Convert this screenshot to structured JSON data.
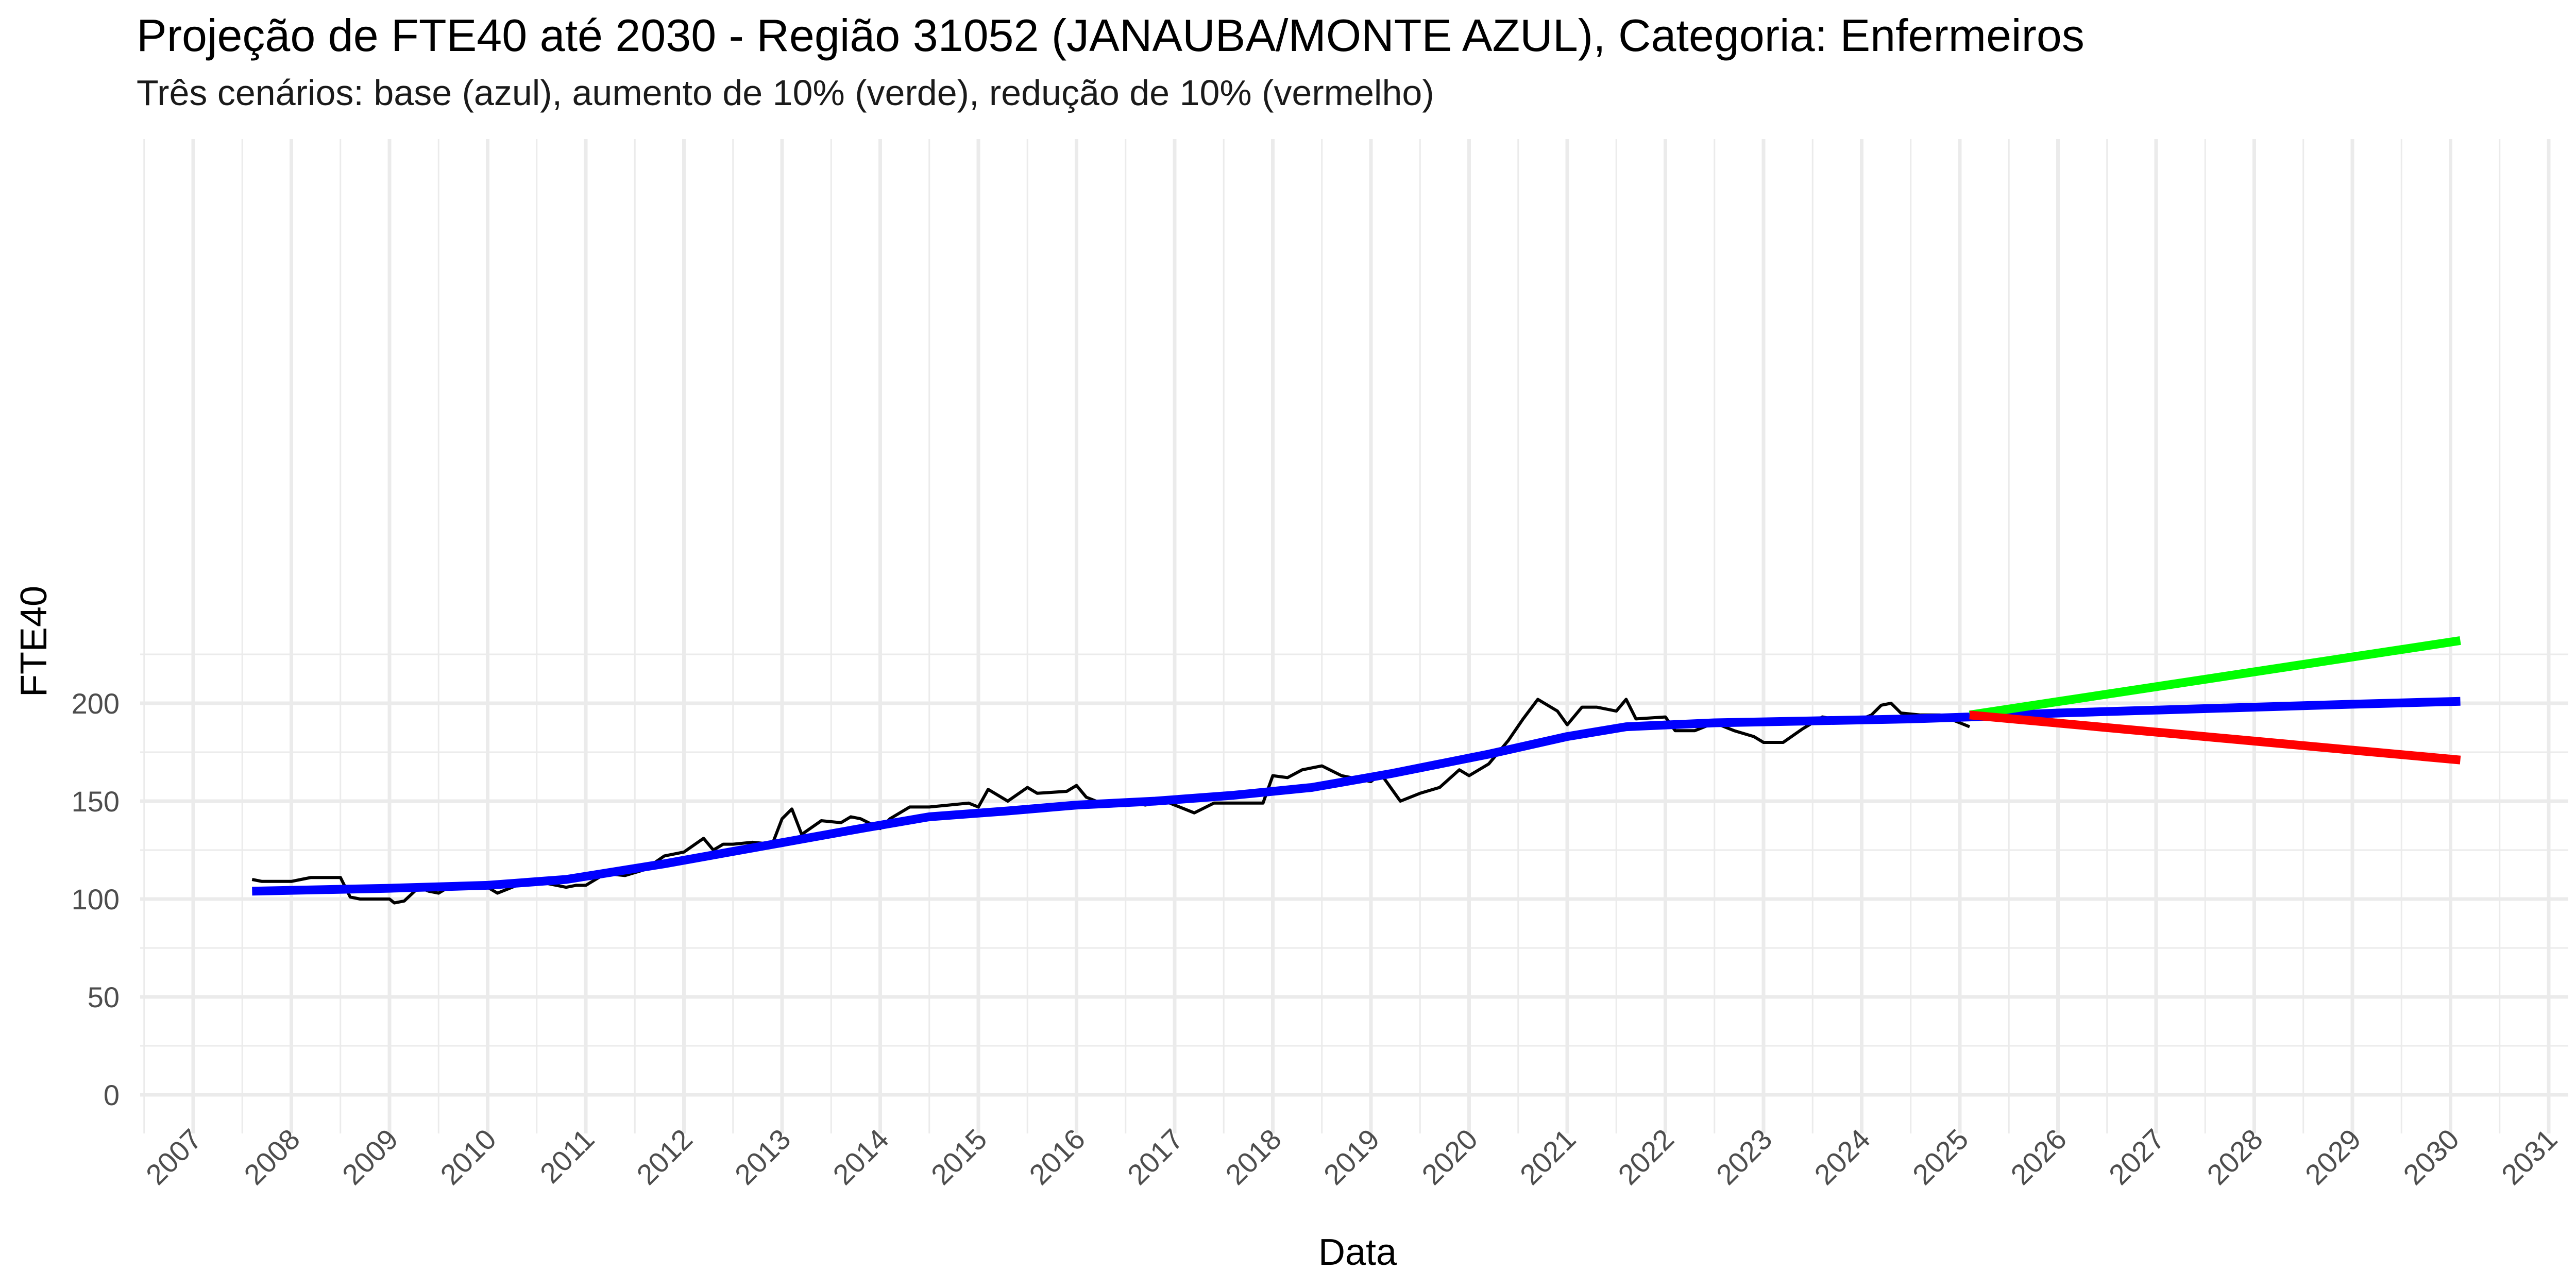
{
  "chart_data": {
    "type": "line",
    "title": "Projeção de FTE40 até 2030 - Região 31052 (JANAUBA/MONTE AZUL), Categoria: Enfermeiros",
    "subtitle": "Três cenários: base (azul), aumento de 10% (verde), redução de 10% (vermelho)",
    "xlabel": "Data",
    "ylabel": "FTE40",
    "xlim": [
      2007,
      2031
    ],
    "ylim": [
      0,
      230
    ],
    "x_ticks": [
      "2007",
      "2008",
      "2009",
      "2010",
      "2011",
      "2012",
      "2013",
      "2014",
      "2015",
      "2016",
      "2017",
      "2018",
      "2019",
      "2020",
      "2021",
      "2022",
      "2023",
      "2024",
      "2025",
      "2026",
      "2027",
      "2028",
      "2029",
      "2030",
      "2031"
    ],
    "y_ticks": [
      0,
      50,
      100,
      150,
      200
    ],
    "grid": true,
    "colors": {
      "observed": "#000000",
      "base": "#0000FF",
      "increase": "#00FF00",
      "decrease": "#FF0000",
      "grid": "#EBEBEB"
    },
    "series": [
      {
        "key": "observed",
        "x": [
          2007.6,
          2007.7,
          2007.8,
          2008.0,
          2008.1,
          2008.2,
          2008.3,
          2008.5,
          2008.6,
          2008.7,
          2008.8,
          2009.0,
          2009.05,
          2009.15,
          2009.3,
          2009.4,
          2009.5,
          2009.6,
          2009.75,
          2009.9,
          2010.0,
          2010.1,
          2010.2,
          2010.3,
          2010.4,
          2010.5,
          2010.6,
          2010.8,
          2010.9,
          2011.0,
          2011.2,
          2011.4,
          2011.6,
          2011.8,
          2012.0,
          2012.2,
          2012.3,
          2012.4,
          2012.5,
          2012.7,
          2012.9,
          2013.0,
          2013.1,
          2013.2,
          2013.4,
          2013.6,
          2013.7,
          2013.8,
          2014.0,
          2014.1,
          2014.3,
          2014.5,
          2014.7,
          2014.9,
          2015.0,
          2015.1,
          2015.3,
          2015.5,
          2015.6,
          2015.9,
          2016.0,
          2016.1,
          2016.3,
          2016.5,
          2016.7,
          2016.9,
          2017.0,
          2017.2,
          2017.4,
          2017.6,
          2017.8,
          2017.9,
          2018.0,
          2018.15,
          2018.3,
          2018.5,
          2018.7,
          2018.9,
          2019.0,
          2019.1,
          2019.3,
          2019.5,
          2019.7,
          2019.9,
          2020.0,
          2020.2,
          2020.4,
          2020.55,
          2020.7,
          2020.9,
          2021.0,
          2021.15,
          2021.3,
          2021.5,
          2021.6,
          2021.7,
          2022.0,
          2022.1,
          2022.3,
          2022.5,
          2022.7,
          2022.9,
          2023.0,
          2023.2,
          2023.4,
          2023.6,
          2023.8,
          2024.0,
          2024.1,
          2024.2,
          2024.3,
          2024.4,
          2024.6,
          2024.8,
          2025.0,
          2025.1
        ],
        "y": [
          110,
          109,
          109,
          109,
          110,
          111,
          111,
          111,
          101,
          100,
          100,
          100,
          98,
          99,
          106,
          104,
          103,
          106,
          107,
          107,
          106,
          103,
          105,
          107,
          109,
          108,
          108,
          106,
          107,
          107,
          113,
          112,
          115,
          122,
          124,
          131,
          125,
          128,
          128,
          129,
          128,
          141,
          146,
          133,
          140,
          139,
          142,
          141,
          136,
          141,
          147,
          147,
          148,
          149,
          147,
          156,
          150,
          157,
          154,
          155,
          158,
          152,
          148,
          150,
          148,
          150,
          148,
          144,
          149,
          149,
          149,
          149,
          163,
          162,
          166,
          168,
          163,
          161,
          160,
          164,
          150,
          154,
          157,
          166,
          163,
          169,
          181,
          192,
          202,
          196,
          189,
          198,
          198,
          196,
          202,
          192,
          193,
          186,
          186,
          190,
          186,
          183,
          180,
          180,
          187,
          193,
          191,
          192,
          194,
          199,
          200,
          195,
          194,
          194,
          190,
          188
        ]
      },
      {
        "key": "base",
        "x": [
          2007.6,
          2009.0,
          2010.0,
          2010.8,
          2011.8,
          2012.8,
          2013.8,
          2014.5,
          2015.3,
          2016.0,
          2016.8,
          2017.6,
          2018.4,
          2019.2,
          2020.2,
          2021.0,
          2021.6,
          2022.5,
          2023.5,
          2024.5,
          2025.1,
          2026.0,
          2027.0,
          2028.0,
          2029.0,
          2030.1
        ],
        "y": [
          104,
          105.5,
          107,
          110,
          118,
          127,
          136,
          142,
          145,
          148,
          150,
          153,
          157,
          164,
          174,
          183,
          188,
          190,
          191,
          192,
          193,
          195,
          196.5,
          198,
          199.5,
          201
        ]
      },
      {
        "key": "increase",
        "x": [
          2025.1,
          2030.1
        ],
        "y": [
          194,
          232
        ]
      },
      {
        "key": "decrease",
        "x": [
          2025.1,
          2030.1
        ],
        "y": [
          194,
          171
        ]
      }
    ]
  }
}
